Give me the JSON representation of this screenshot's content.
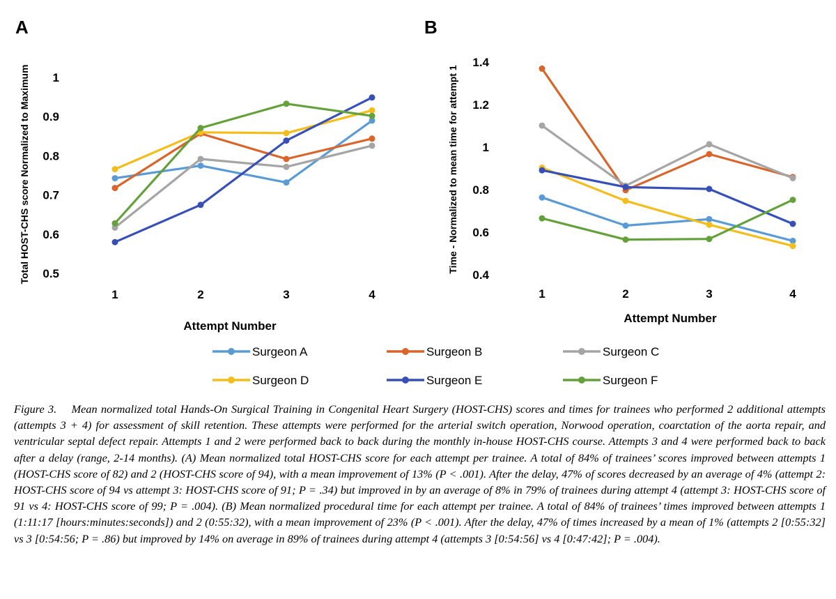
{
  "panels": [
    {
      "letter": "A"
    },
    {
      "letter": "B"
    }
  ],
  "colors": {
    "Surgeon A": "#5b9bd5",
    "Surgeon B": "#d9652b",
    "Surgeon C": "#a5a5a5",
    "Surgeon D": "#f3bd1c",
    "Surgeon E": "#3750b7",
    "Surgeon F": "#65a13a"
  },
  "legend": [
    "Surgeon A",
    "Surgeon B",
    "Surgeon C",
    "Surgeon D",
    "Surgeon E",
    "Surgeon F"
  ],
  "chart_data": [
    {
      "type": "line",
      "panel": "A",
      "categories": [
        "1",
        "2",
        "3",
        "4"
      ],
      "ylabel": "Total HOST-CHS score Normalized to Maximum",
      "xlabel": "Attempt Number",
      "ylim": [
        0.5,
        1
      ],
      "yticks": [
        0.5,
        0.6,
        0.7,
        0.8,
        0.9,
        1
      ],
      "ytick_labels": [
        "0.5",
        "0.6",
        "0.7",
        "0.8",
        "0.9",
        "1"
      ],
      "grid": false,
      "series": [
        {
          "name": "Surgeon A",
          "values": [
            0.741,
            0.773,
            0.73,
            0.888
          ]
        },
        {
          "name": "Surgeon B",
          "values": [
            0.716,
            0.855,
            0.79,
            0.842
          ]
        },
        {
          "name": "Surgeon C",
          "values": [
            0.615,
            0.79,
            0.77,
            0.824
          ]
        },
        {
          "name": "Surgeon D",
          "values": [
            0.764,
            0.858,
            0.856,
            0.914
          ]
        },
        {
          "name": "Surgeon E",
          "values": [
            0.578,
            0.673,
            0.837,
            0.947
          ]
        },
        {
          "name": "Surgeon F",
          "values": [
            0.626,
            0.869,
            0.931,
            0.9
          ]
        }
      ]
    },
    {
      "type": "line",
      "panel": "B",
      "categories": [
        "1",
        "2",
        "3",
        "4"
      ],
      "ylabel": "Time - Normalized to mean time for attempt 1",
      "xlabel": "Attempt Number",
      "ylim": [
        0.4,
        1.4
      ],
      "yticks": [
        0.4,
        0.6,
        0.8,
        1,
        1.2,
        1.4
      ],
      "ytick_labels": [
        "0.4",
        "0.6",
        "0.8",
        "1",
        "1.2",
        "1.4"
      ],
      "grid": false,
      "series": [
        {
          "name": "Surgeon A",
          "values": [
            0.76,
            0.628,
            0.658,
            0.556
          ]
        },
        {
          "name": "Surgeon B",
          "values": [
            1.366,
            0.794,
            0.964,
            0.856
          ]
        },
        {
          "name": "Surgeon C",
          "values": [
            1.098,
            0.815,
            1.01,
            0.851
          ]
        },
        {
          "name": "Surgeon D",
          "values": [
            0.9,
            0.744,
            0.632,
            0.532
          ]
        },
        {
          "name": "Surgeon E",
          "values": [
            0.888,
            0.809,
            0.8,
            0.636
          ]
        },
        {
          "name": "Surgeon F",
          "values": [
            0.662,
            0.562,
            0.565,
            0.749
          ]
        }
      ]
    }
  ],
  "caption": {
    "lead": "Figure 3.",
    "text": "Mean normalized total Hands-On Surgical Training in Congenital Heart Surgery (HOST-CHS) scores and times for trainees who performed 2 additional attempts (attempts 3 + 4) for assessment of skill retention. These attempts were performed for the arterial switch operation, Norwood operation, coarctation of the aorta repair, and ventricular septal defect repair. Attempts 1 and 2 were performed back to back during the monthly in-house HOST-CHS course. Attempts 3 and 4 were performed back to back after a delay (range, 2-14 months). (A) Mean normalized total HOST-CHS score for each attempt per trainee. A total of 84% of trainees’ scores improved between attempts 1 (HOST-CHS score of 82) and 2 (HOST-CHS score of 94), with a mean improvement of 13% (P < .001). After the delay, 47% of scores decreased by an average of 4% (attempt 2: HOST-CHS score of 94 vs attempt 3: HOST-CHS score of 91; P = .34) but improved in by an average of 8% in 79% of trainees during attempt 4 (attempt 3: HOST-CHS score of 91 vs 4: HOST-CHS score of 99; P = .004). (B) Mean normalized procedural time for each attempt per trainee. A total of 84% of trainees’ times improved between attempts 1 (1:11:17 [hours:minutes:seconds]) and 2 (0:55:32), with a mean improvement of 23% (P < .001). After the delay, 47% of times increased by a mean of 1% (attempts 2 [0:55:32] vs 3 [0:54:56; P = .86) but improved by 14% on average in 89% of trainees during attempt 4 (attempts 3 [0:54:56] vs 4 [0:47:42]; P = .004)."
  }
}
